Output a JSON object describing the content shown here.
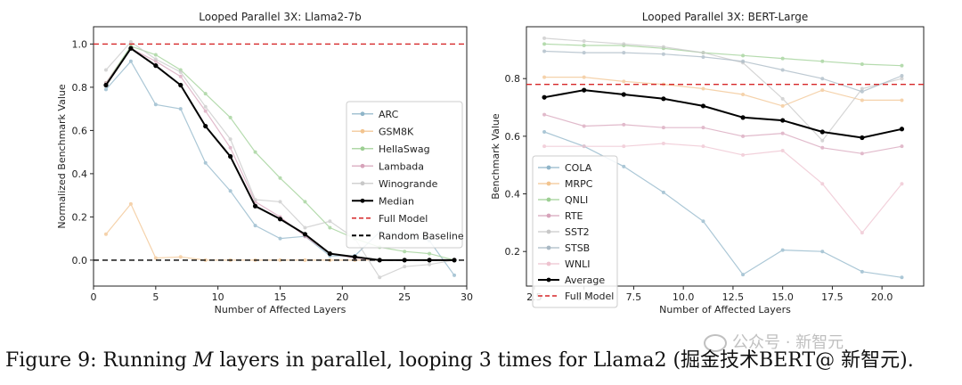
{
  "chart_data": [
    {
      "type": "line",
      "title": "Looped Parallel 3X: Llama2-7b",
      "xlabel": "Number of Affected Layers",
      "ylabel": "Normalized Benchmark Value",
      "xlim": [
        0,
        30
      ],
      "ylim": [
        -0.12,
        1.08
      ],
      "xticks": [
        0,
        5,
        10,
        15,
        20,
        25,
        30
      ],
      "yticks": [
        0.0,
        0.2,
        0.4,
        0.6,
        0.8,
        1.0
      ],
      "ytick_labels": [
        "0.0",
        "0.2",
        "0.4",
        "0.6",
        "0.8",
        "1.0"
      ],
      "legend_position": "center-right",
      "series": [
        {
          "name": "ARC",
          "color": "#8fb5c9",
          "x": [
            1,
            3,
            5,
            7,
            9,
            11,
            13,
            15,
            17,
            19,
            21,
            23,
            25,
            27,
            29
          ],
          "values": [
            0.79,
            0.92,
            0.72,
            0.7,
            0.45,
            0.32,
            0.16,
            0.1,
            0.11,
            0.02,
            0.02,
            0.13,
            0.12,
            0.09,
            -0.07
          ]
        },
        {
          "name": "GSM8K",
          "color": "#f2c48f",
          "x": [
            1,
            3,
            5,
            7,
            9,
            11,
            13,
            15,
            17,
            19,
            21,
            23,
            25,
            27,
            29
          ],
          "values": [
            0.12,
            0.26,
            0.01,
            0.015,
            0.0,
            0.0,
            0.0,
            0.0,
            0.0,
            0.0,
            0.0,
            0.0,
            0.0,
            0.0,
            0.0
          ]
        },
        {
          "name": "HellaSwag",
          "color": "#9dcf93",
          "x": [
            1,
            3,
            5,
            7,
            9,
            11,
            13,
            15,
            17,
            19,
            21,
            23,
            25,
            27,
            29
          ],
          "values": [
            0.82,
            0.99,
            0.95,
            0.88,
            0.77,
            0.66,
            0.5,
            0.38,
            0.27,
            0.15,
            0.1,
            0.06,
            0.04,
            0.03,
            0.0
          ]
        },
        {
          "name": "Lambada",
          "color": "#d7a3ba",
          "x": [
            1,
            3,
            5,
            7,
            9,
            11,
            13,
            15,
            17,
            19,
            21,
            23,
            25,
            27,
            29
          ],
          "values": [
            0.82,
            0.98,
            0.92,
            0.85,
            0.69,
            0.52,
            0.27,
            0.2,
            0.11,
            0.03,
            0.01,
            0.0,
            0.0,
            0.0,
            0.0
          ]
        },
        {
          "name": "Winogrande",
          "color": "#c8c8c8",
          "x": [
            1,
            3,
            5,
            7,
            9,
            11,
            13,
            15,
            17,
            19,
            21,
            23,
            25,
            27,
            29
          ],
          "values": [
            0.88,
            1.01,
            0.93,
            0.87,
            0.71,
            0.56,
            0.28,
            0.27,
            0.15,
            0.18,
            0.1,
            -0.08,
            -0.03,
            -0.02,
            0.0
          ]
        },
        {
          "name": "Median",
          "color": "#000000",
          "x": [
            1,
            3,
            5,
            7,
            9,
            11,
            13,
            15,
            17,
            19,
            21,
            23,
            25,
            27,
            29
          ],
          "values": [
            0.81,
            0.98,
            0.9,
            0.81,
            0.62,
            0.48,
            0.25,
            0.19,
            0.12,
            0.03,
            0.015,
            0.0,
            0.0,
            0.0,
            0.0
          ]
        }
      ],
      "reference_lines": [
        {
          "name": "Full Model",
          "y": 1.0,
          "color": "#d62728"
        },
        {
          "name": "Random Baseline",
          "y": 0.0,
          "color": "#000000"
        }
      ]
    },
    {
      "type": "line",
      "title": "Looped Parallel 3X: BERT-Large",
      "xlabel": "Number of Affected Layers",
      "ylabel": "Benchmark Value",
      "xlim": [
        2.1,
        22.1
      ],
      "ylim": [
        0.08,
        0.98
      ],
      "xticks": [
        2.5,
        5.0,
        7.5,
        10.0,
        12.5,
        15.0,
        17.5,
        20.0
      ],
      "xtick_labels": [
        "2.5",
        "5.0",
        "7.5",
        "10.0",
        "12.5",
        "15.0",
        "17.5",
        "20.0"
      ],
      "yticks": [
        0.2,
        0.4,
        0.6,
        0.8
      ],
      "ytick_labels": [
        "0.2",
        "0.4",
        "0.6",
        "0.8"
      ],
      "legend_position": "lower-left",
      "series": [
        {
          "name": "COLA",
          "color": "#8fb5c9",
          "x": [
            3,
            5,
            7,
            9,
            11,
            13,
            15,
            17,
            19,
            21
          ],
          "values": [
            0.615,
            0.565,
            0.495,
            0.405,
            0.305,
            0.12,
            0.205,
            0.2,
            0.13,
            0.11
          ]
        },
        {
          "name": "MRPC",
          "color": "#f2c48f",
          "x": [
            3,
            5,
            7,
            9,
            11,
            13,
            15,
            17,
            19,
            21
          ],
          "values": [
            0.805,
            0.805,
            0.79,
            0.78,
            0.765,
            0.745,
            0.705,
            0.76,
            0.725,
            0.725
          ]
        },
        {
          "name": "QNLI",
          "color": "#9dcf93",
          "x": [
            3,
            5,
            7,
            9,
            11,
            13,
            15,
            17,
            19,
            21
          ],
          "values": [
            0.92,
            0.915,
            0.915,
            0.905,
            0.89,
            0.88,
            0.87,
            0.86,
            0.85,
            0.845
          ]
        },
        {
          "name": "RTE",
          "color": "#d7a3ba",
          "x": [
            3,
            5,
            7,
            9,
            11,
            13,
            15,
            17,
            19,
            21
          ],
          "values": [
            0.675,
            0.635,
            0.64,
            0.63,
            0.63,
            0.6,
            0.61,
            0.56,
            0.54,
            0.565
          ]
        },
        {
          "name": "SST2",
          "color": "#c8c8c8",
          "x": [
            3,
            5,
            7,
            9,
            11,
            13,
            15,
            17,
            19,
            21
          ],
          "values": [
            0.94,
            0.93,
            0.92,
            0.91,
            0.89,
            0.855,
            0.73,
            0.585,
            0.765,
            0.8
          ]
        },
        {
          "name": "STSB",
          "color": "#a8b8c4",
          "x": [
            3,
            5,
            7,
            9,
            11,
            13,
            15,
            17,
            19,
            21
          ],
          "values": [
            0.895,
            0.89,
            0.89,
            0.885,
            0.875,
            0.86,
            0.83,
            0.8,
            0.755,
            0.81
          ]
        },
        {
          "name": "WNLI",
          "color": "#eec2cf",
          "x": [
            3,
            5,
            7,
            9,
            11,
            13,
            15,
            17,
            19,
            21
          ],
          "values": [
            0.565,
            0.565,
            0.565,
            0.575,
            0.565,
            0.535,
            0.55,
            0.435,
            0.265,
            0.435
          ]
        },
        {
          "name": "Average",
          "color": "#000000",
          "x": [
            3,
            5,
            7,
            9,
            11,
            13,
            15,
            17,
            19,
            21
          ],
          "values": [
            0.735,
            0.76,
            0.745,
            0.73,
            0.705,
            0.665,
            0.655,
            0.615,
            0.595,
            0.625
          ]
        }
      ],
      "reference_lines": [
        {
          "name": "Full Model",
          "y": 0.78,
          "color": "#d62728"
        }
      ]
    }
  ],
  "caption": {
    "prefix": "Figure 9: Running ",
    "math": "M",
    "suffix": " layers in parallel, looping 3 times for Llama2 (",
    "obscured": "掘金技术BERT@ 新智元",
    "end": ")."
  },
  "watermark": {
    "text": "公众号 · 新智元"
  }
}
